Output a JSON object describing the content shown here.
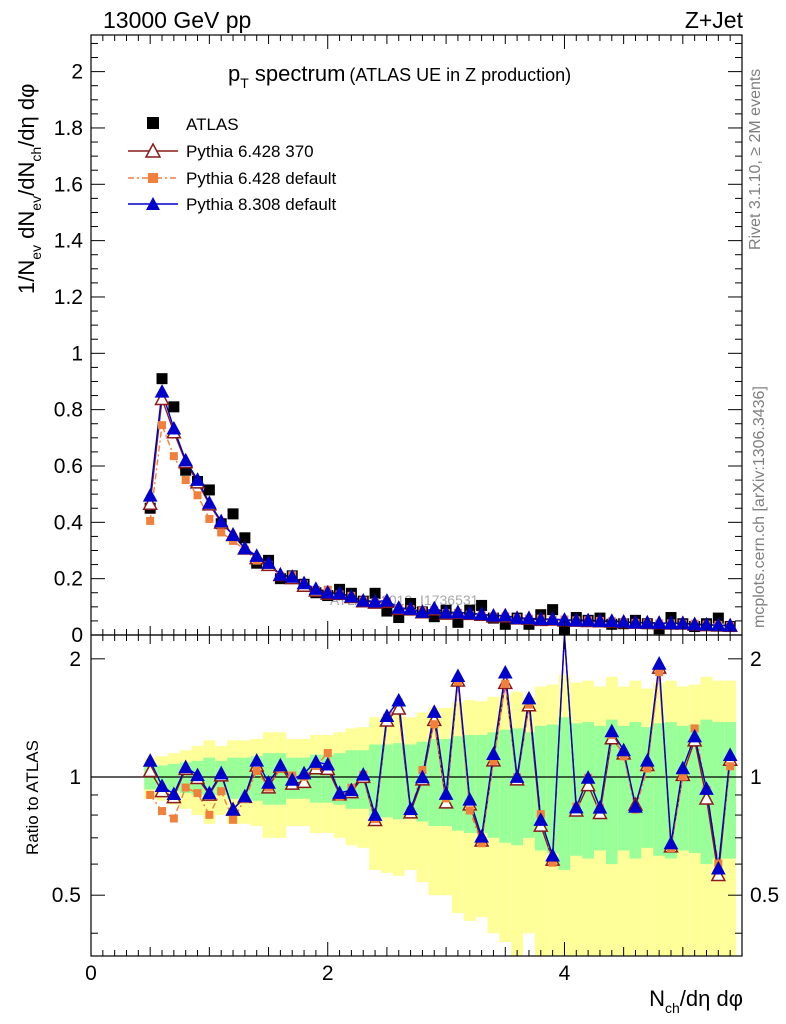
{
  "header": {
    "left": "13000 GeV pp",
    "right": "Z+Jet"
  },
  "side_labels": {
    "rivet": "Rivet 3.1.10, ≥ 2M events",
    "mcplots": "mcplots.cern.ch [arXiv:1306.3436]"
  },
  "watermark": "ATLAS_2019_I1736531",
  "chart_data": {
    "type": "scatter",
    "title_main": "p",
    "title_sub": "T",
    "title_rest": " spectrum",
    "title_note": "(ATLAS UE in Z production)",
    "ylabel": {
      "p1": "1/N",
      "s1": "ev",
      "p2": " dN",
      "s2": "ev",
      "p3": "/dN",
      "s3": "ch",
      "p4": "/dη dφ"
    },
    "xlabel": {
      "p1": "N",
      "s1": "ch",
      "p2": "/dη dφ"
    },
    "ratio_ylabel": "Ratio to ATLAS",
    "xlim": [
      0,
      5.5
    ],
    "ylim": [
      0,
      2.13
    ],
    "ratio_ylim": [
      0.35,
      2.3
    ],
    "x_ticks": [
      "0",
      "2",
      "4"
    ],
    "y_ticks": [
      "0",
      "0.2",
      "0.4",
      "0.6",
      "0.8",
      "1",
      "1.2",
      "1.4",
      "1.6",
      "1.8",
      "2"
    ],
    "ratio_ticks": [
      "0.5",
      "1",
      "2"
    ],
    "grid": false,
    "legend_position": "top-left",
    "x": [
      0.5,
      0.6,
      0.7,
      0.8,
      0.9,
      1.0,
      1.1,
      1.2,
      1.3,
      1.4,
      1.5,
      1.6,
      1.7,
      1.8,
      1.9,
      2.0,
      2.1,
      2.2,
      2.3,
      2.4,
      2.5,
      2.6,
      2.7,
      2.8,
      2.9,
      3.0,
      3.1,
      3.2,
      3.3,
      3.4,
      3.5,
      3.6,
      3.7,
      3.8,
      3.9,
      4.0,
      4.1,
      4.2,
      4.3,
      4.4,
      4.5,
      4.6,
      4.7,
      4.8,
      4.9,
      5.0,
      5.1,
      5.2,
      5.3,
      5.4
    ],
    "band_green": [
      0.07,
      0.07,
      0.08,
      0.09,
      0.1,
      0.12,
      0.1,
      0.12,
      0.12,
      0.13,
      0.15,
      0.15,
      0.12,
      0.12,
      0.14,
      0.14,
      0.15,
      0.17,
      0.17,
      0.21,
      0.21,
      0.22,
      0.21,
      0.23,
      0.25,
      0.25,
      0.27,
      0.28,
      0.28,
      0.3,
      0.32,
      0.33,
      0.3,
      0.35,
      0.36,
      0.42,
      0.37,
      0.38,
      0.35,
      0.4,
      0.35,
      0.38,
      0.34,
      0.37,
      0.38,
      0.35,
      0.36,
      0.4,
      0.38,
      0.38
    ],
    "band_yellow": [
      0.12,
      0.13,
      0.15,
      0.17,
      0.2,
      0.24,
      0.2,
      0.24,
      0.24,
      0.25,
      0.3,
      0.3,
      0.25,
      0.25,
      0.28,
      0.28,
      0.3,
      0.33,
      0.34,
      0.42,
      0.43,
      0.44,
      0.42,
      0.46,
      0.5,
      0.5,
      0.55,
      0.57,
      0.56,
      0.6,
      0.62,
      0.65,
      0.6,
      0.7,
      0.72,
      0.82,
      0.74,
      0.76,
      0.7,
      0.8,
      0.7,
      0.76,
      0.68,
      0.74,
      0.76,
      0.7,
      0.72,
      0.8,
      0.76,
      0.76
    ],
    "series": [
      {
        "name": "ATLAS",
        "color": "#000000",
        "marker": "square",
        "values": [
          0.45,
          0.91,
          0.81,
          0.585,
          0.545,
          0.515,
          0.395,
          0.43,
          0.345,
          0.255,
          0.265,
          0.2,
          0.21,
          0.18,
          0.15,
          0.14,
          0.162,
          0.148,
          0.12,
          0.148,
          0.085,
          0.062,
          0.112,
          0.082,
          0.065,
          0.088,
          0.045,
          0.088,
          0.105,
          0.06,
          0.038,
          0.06,
          0.038,
          0.072,
          0.09,
          0.02,
          0.062,
          0.052,
          0.06,
          0.038,
          0.04,
          0.052,
          0.04,
          0.022,
          0.062,
          0.04,
          0.03,
          0.04,
          0.06,
          0.03
        ]
      },
      {
        "name": "Pythia 6.428 370",
        "color": "#8b1a1a",
        "marker": "triangle-open",
        "values": [
          0.466,
          0.838,
          0.72,
          0.614,
          0.542,
          0.464,
          0.399,
          0.355,
          0.307,
          0.273,
          0.249,
          0.213,
          0.202,
          0.175,
          0.158,
          0.147,
          0.146,
          0.135,
          0.12,
          0.115,
          0.118,
          0.093,
          0.091,
          0.081,
          0.091,
          0.076,
          0.079,
          0.075,
          0.072,
          0.066,
          0.066,
          0.059,
          0.058,
          0.054,
          0.055,
          0.052,
          0.051,
          0.05,
          0.049,
          0.048,
          0.046,
          0.044,
          0.043,
          0.042,
          0.041,
          0.041,
          0.037,
          0.035,
          0.034,
          0.033
        ]
      },
      {
        "name": "Pythia 6.428 default",
        "color": "#f0803c",
        "marker": "square-small",
        "values": [
          0.405,
          0.745,
          0.635,
          0.55,
          0.496,
          0.412,
          0.364,
          0.334,
          0.303,
          0.264,
          0.249,
          0.21,
          0.212,
          0.18,
          0.16,
          0.161,
          0.144,
          0.139,
          0.122,
          0.116,
          0.12,
          0.096,
          0.092,
          0.085,
          0.089,
          0.078,
          0.079,
          0.072,
          0.071,
          0.066,
          0.066,
          0.06,
          0.058,
          0.058,
          0.054,
          0.055,
          0.052,
          0.052,
          0.05,
          0.049,
          0.045,
          0.043,
          0.042,
          0.041,
          0.041,
          0.04,
          0.04,
          0.037,
          0.036,
          0.032
        ]
      },
      {
        "name": "Pythia 8.308 default",
        "color": "#0000cc",
        "marker": "triangle",
        "values": [
          0.495,
          0.864,
          0.733,
          0.62,
          0.551,
          0.469,
          0.404,
          0.355,
          0.308,
          0.281,
          0.256,
          0.214,
          0.207,
          0.184,
          0.164,
          0.151,
          0.148,
          0.137,
          0.122,
          0.119,
          0.122,
          0.097,
          0.093,
          0.082,
          0.095,
          0.08,
          0.081,
          0.077,
          0.074,
          0.069,
          0.07,
          0.06,
          0.06,
          0.056,
          0.057,
          0.054,
          0.052,
          0.052,
          0.05,
          0.05,
          0.047,
          0.044,
          0.044,
          0.043,
          0.042,
          0.042,
          0.038,
          0.037,
          0.035,
          0.034
        ]
      }
    ],
    "ratios": {
      "Pythia 6.428 370": [
        1.036,
        0.921,
        0.889,
        1.049,
        0.994,
        0.902,
        1.01,
        0.826,
        0.89,
        1.07,
        0.941,
        1.063,
        0.962,
        0.972,
        1.053,
        1.049,
        0.903,
        0.915,
        1.001,
        0.777,
        1.393,
        1.495,
        0.813,
        0.986,
        1.398,
        0.862,
        1.761,
        0.852,
        0.689,
        1.103,
        1.737,
        0.986,
        1.524,
        0.752,
        0.616,
        2.606,
        0.822,
        0.954,
        0.81,
        1.255,
        1.149,
        0.851,
        1.073,
        1.9,
        0.666,
        1.013,
        1.24,
        0.882,
        0.563,
        1.107
      ],
      "Pythia 6.428 default": [
        0.9,
        0.819,
        0.784,
        0.94,
        0.91,
        0.801,
        0.92,
        0.778,
        0.879,
        1.036,
        0.94,
        1.049,
        1.009,
        1.001,
        1.067,
        1.151,
        0.891,
        0.939,
        1.013,
        0.781,
        1.416,
        1.548,
        0.818,
        1.042,
        1.363,
        0.882,
        1.749,
        0.822,
        0.678,
        1.097,
        1.727,
        0.999,
        1.529,
        0.804,
        0.605,
        2.744,
        0.841,
        0.995,
        0.835,
        1.28,
        1.129,
        0.826,
        1.051,
        1.849,
        0.659,
        1.003,
        1.33,
        0.927,
        0.602,
        1.065
      ],
      "Pythia 8.308 default": [
        1.1,
        0.949,
        0.905,
        1.06,
        1.011,
        0.91,
        1.022,
        0.826,
        0.893,
        1.101,
        0.967,
        1.071,
        0.984,
        1.022,
        1.093,
        1.076,
        0.911,
        0.926,
        1.014,
        0.801,
        1.43,
        1.567,
        0.829,
        0.999,
        1.465,
        0.906,
        1.808,
        0.876,
        0.705,
        1.145,
        1.846,
        1.001,
        1.586,
        0.778,
        0.631,
        2.686,
        0.837,
        0.996,
        0.836,
        1.308,
        1.17,
        0.84,
        1.101,
        1.944,
        0.678,
        1.053,
        1.269,
        0.933,
        0.585,
        1.138
      ]
    }
  }
}
